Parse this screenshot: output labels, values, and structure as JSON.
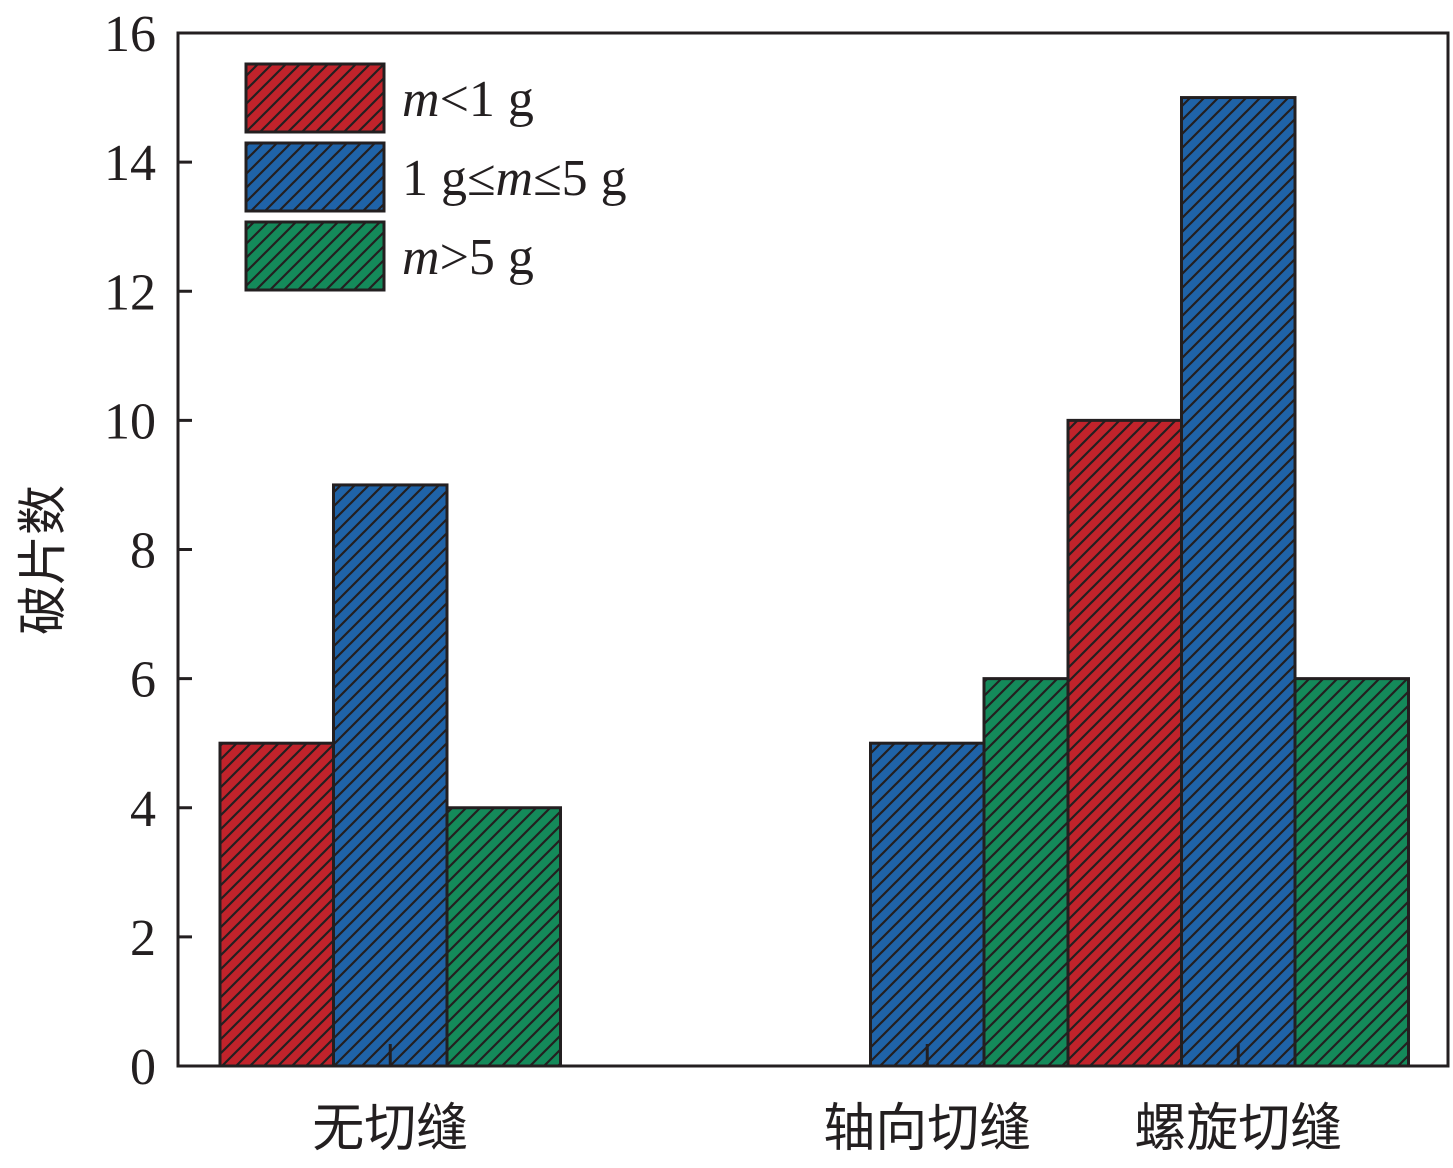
{
  "chart_data": {
    "type": "bar",
    "categories": [
      "无切缝",
      "轴向切缝",
      "螺旋切缝"
    ],
    "series": [
      {
        "name": "m<1 g",
        "values": [
          5,
          0,
          10
        ],
        "color": "#c1232b"
      },
      {
        "name": "1 g≤m≤5 g",
        "values": [
          9,
          5,
          15
        ],
        "color": "#1f63a8"
      },
      {
        "name": "m>5 g",
        "values": [
          4,
          6,
          6
        ],
        "color": "#148a5a"
      }
    ],
    "legend_labels": [
      {
        "italic": "m",
        "rest": "<1 g"
      },
      {
        "prefix": "1 g≤",
        "italic": "m",
        "rest": "≤5 g"
      },
      {
        "italic": "m",
        "rest": ">5 g"
      }
    ],
    "title": "",
    "xlabel": "",
    "ylabel": "破片数",
    "ylim": [
      0,
      16
    ],
    "yticks": [
      0,
      2,
      4,
      6,
      8,
      10,
      12,
      14,
      16
    ],
    "grid": false,
    "legend_position": "top-left",
    "pattern": "diagonal-hatch",
    "bar_outline_color": "#231f20"
  }
}
